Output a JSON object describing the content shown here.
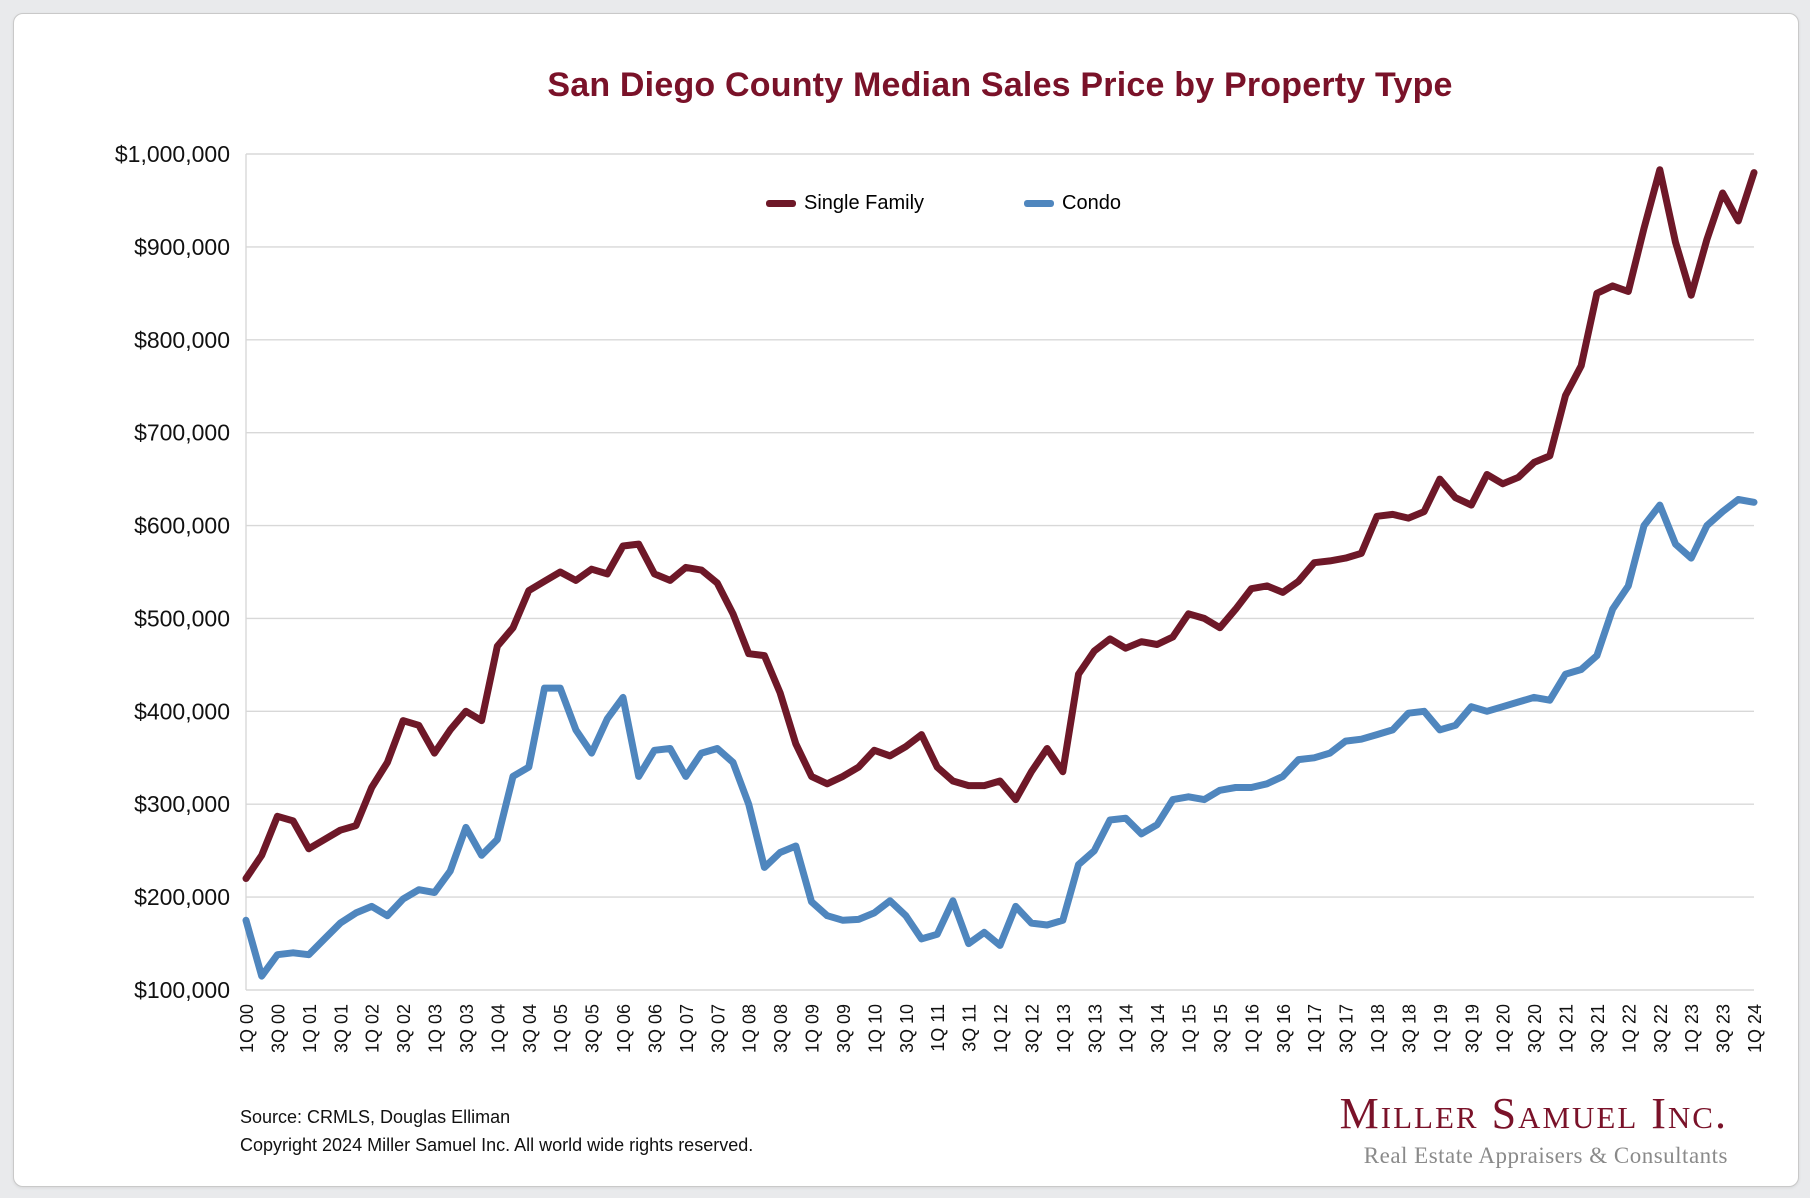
{
  "chart_data": {
    "type": "line",
    "title": "San Diego County Median Sales Price by Property Type",
    "title_color": "#7a1229",
    "xlabel": "",
    "ylabel": "",
    "ylim": [
      100000,
      1000000
    ],
    "grid": "horizontal",
    "legend_position": "top-center",
    "x_tick_every": 2,
    "y_ticks": [
      {
        "value": 100000,
        "label": "$100,000"
      },
      {
        "value": 200000,
        "label": "$200,000"
      },
      {
        "value": 300000,
        "label": "$300,000"
      },
      {
        "value": 400000,
        "label": "$400,000"
      },
      {
        "value": 500000,
        "label": "$500,000"
      },
      {
        "value": 600000,
        "label": "$600,000"
      },
      {
        "value": 700000,
        "label": "$700,000"
      },
      {
        "value": 800000,
        "label": "$800,000"
      },
      {
        "value": 900000,
        "label": "$900,000"
      },
      {
        "value": 1000000,
        "label": "$1,000,000"
      }
    ],
    "categories": [
      "1Q 00",
      "2Q 00",
      "3Q 00",
      "4Q 00",
      "1Q 01",
      "2Q 01",
      "3Q 01",
      "4Q 01",
      "1Q 02",
      "2Q 02",
      "3Q 02",
      "4Q 02",
      "1Q 03",
      "2Q 03",
      "3Q 03",
      "4Q 03",
      "1Q 04",
      "2Q 04",
      "3Q 04",
      "4Q 04",
      "1Q 05",
      "2Q 05",
      "3Q 05",
      "4Q 05",
      "1Q 06",
      "2Q 06",
      "3Q 06",
      "4Q 06",
      "1Q 07",
      "2Q 07",
      "3Q 07",
      "4Q 07",
      "1Q 08",
      "2Q 08",
      "3Q 08",
      "4Q 08",
      "1Q 09",
      "2Q 09",
      "3Q 09",
      "4Q 09",
      "1Q 10",
      "2Q 10",
      "3Q 10",
      "4Q 10",
      "1Q 11",
      "2Q 11",
      "3Q 11",
      "4Q 11",
      "1Q 12",
      "2Q 12",
      "3Q 12",
      "4Q 12",
      "1Q 13",
      "2Q 13",
      "3Q 13",
      "4Q 13",
      "1Q 14",
      "2Q 14",
      "3Q 14",
      "4Q 14",
      "1Q 15",
      "2Q 15",
      "3Q 15",
      "4Q 15",
      "1Q 16",
      "2Q 16",
      "3Q 16",
      "4Q 16",
      "1Q 17",
      "2Q 17",
      "3Q 17",
      "4Q 17",
      "1Q 18",
      "2Q 18",
      "3Q 18",
      "4Q 18",
      "1Q 19",
      "2Q 19",
      "3Q 19",
      "4Q 19",
      "1Q 20",
      "2Q 20",
      "3Q 20",
      "4Q 20",
      "1Q 21",
      "2Q 21",
      "3Q 21",
      "4Q 21",
      "1Q 22",
      "2Q 22",
      "3Q 22",
      "4Q 22",
      "1Q 23",
      "2Q 23",
      "3Q 23",
      "4Q 23",
      "1Q 24"
    ],
    "series": [
      {
        "name": "Single Family",
        "color": "#6e1828",
        "values": [
          220000,
          245000,
          287000,
          282000,
          252000,
          262000,
          272000,
          277000,
          318000,
          345000,
          390000,
          385000,
          355000,
          380000,
          400000,
          390000,
          470000,
          490000,
          530000,
          540000,
          550000,
          541000,
          553000,
          548000,
          578000,
          580000,
          548000,
          541000,
          555000,
          552000,
          538000,
          505000,
          462000,
          460000,
          420000,
          365000,
          330000,
          322000,
          330000,
          340000,
          358000,
          352000,
          362000,
          375000,
          340000,
          325000,
          320000,
          320000,
          325000,
          305000,
          335000,
          360000,
          335000,
          440000,
          465000,
          478000,
          468000,
          475000,
          472000,
          480000,
          505000,
          500000,
          490000,
          510000,
          532000,
          535000,
          528000,
          540000,
          560000,
          562000,
          565000,
          570000,
          610000,
          612000,
          608000,
          615000,
          650000,
          630000,
          622000,
          655000,
          645000,
          652000,
          668000,
          675000,
          740000,
          772000,
          850000,
          858000,
          852000,
          920000,
          983000,
          905000,
          848000,
          908000,
          958000,
          928000,
          980000
        ]
      },
      {
        "name": "Condo",
        "color": "#4f86be",
        "values": [
          175000,
          115000,
          138000,
          140000,
          138000,
          155000,
          172000,
          183000,
          190000,
          180000,
          198000,
          208000,
          205000,
          228000,
          275000,
          245000,
          262000,
          330000,
          340000,
          425000,
          425000,
          380000,
          355000,
          392000,
          415000,
          330000,
          358000,
          360000,
          330000,
          355000,
          360000,
          345000,
          300000,
          232000,
          248000,
          255000,
          195000,
          180000,
          175000,
          176000,
          183000,
          196000,
          180000,
          155000,
          160000,
          196000,
          150000,
          162000,
          148000,
          190000,
          172000,
          170000,
          175000,
          235000,
          250000,
          283000,
          285000,
          268000,
          278000,
          305000,
          308000,
          305000,
          315000,
          318000,
          318000,
          322000,
          330000,
          348000,
          350000,
          355000,
          368000,
          370000,
          375000,
          380000,
          398000,
          400000,
          380000,
          385000,
          405000,
          400000,
          405000,
          410000,
          415000,
          412000,
          440000,
          445000,
          460000,
          510000,
          535000,
          600000,
          622000,
          580000,
          565000,
          600000,
          615000,
          628000,
          625000
        ]
      }
    ]
  },
  "footer": {
    "source": "Source: CRMLS, Douglas Elliman",
    "copyright": "Copyright 2024 Miller Samuel Inc.  All world wide rights reserved.",
    "logo_name": "Miller Samuel Inc.",
    "logo_tagline": "Real Estate Appraisers & Consultants"
  }
}
